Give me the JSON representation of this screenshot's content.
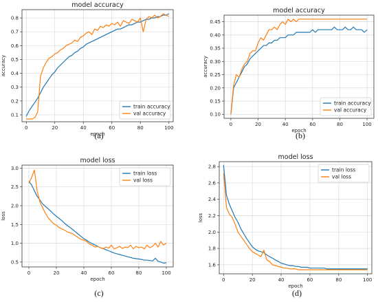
{
  "chart_data": [
    {
      "type": "line",
      "caption": "(a)",
      "title": "model accuracy",
      "xlabel": "epoch",
      "ylabel": "accuracy",
      "xlim": [
        -3,
        103
      ],
      "ylim": [
        0.05,
        0.86
      ],
      "xticks": [
        0,
        20,
        40,
        60,
        80,
        100
      ],
      "yticks": [
        0.1,
        0.2,
        0.3,
        0.4,
        0.5,
        0.6,
        0.7,
        0.8
      ],
      "ytick_labels": [
        "0.1",
        "0.2",
        "0.3",
        "0.4",
        "0.5",
        "0.6",
        "0.7",
        "0.8"
      ],
      "grid": true,
      "legend": "lower-right",
      "x": [
        0,
        2,
        4,
        6,
        8,
        10,
        12,
        14,
        16,
        18,
        20,
        22,
        24,
        26,
        28,
        30,
        32,
        34,
        36,
        38,
        40,
        42,
        44,
        46,
        48,
        50,
        52,
        54,
        56,
        58,
        60,
        62,
        64,
        66,
        68,
        70,
        72,
        74,
        76,
        78,
        80,
        82,
        84,
        86,
        88,
        90,
        92,
        94,
        96,
        98,
        100
      ],
      "series": [
        {
          "name": "train accuracy",
          "color": "#1f77b4",
          "values": [
            0.09,
            0.13,
            0.16,
            0.19,
            0.22,
            0.26,
            0.3,
            0.33,
            0.36,
            0.39,
            0.41,
            0.44,
            0.46,
            0.48,
            0.5,
            0.52,
            0.53,
            0.55,
            0.56,
            0.58,
            0.59,
            0.61,
            0.62,
            0.63,
            0.64,
            0.65,
            0.66,
            0.67,
            0.68,
            0.69,
            0.7,
            0.71,
            0.72,
            0.72,
            0.73,
            0.74,
            0.75,
            0.75,
            0.76,
            0.77,
            0.77,
            0.78,
            0.79,
            0.79,
            0.8,
            0.8,
            0.81,
            0.81,
            0.82,
            0.82,
            0.83
          ]
        },
        {
          "name": "val accuracy",
          "color": "#ff7f0e",
          "values": [
            0.07,
            0.07,
            0.07,
            0.08,
            0.12,
            0.38,
            0.44,
            0.48,
            0.51,
            0.52,
            0.54,
            0.55,
            0.57,
            0.58,
            0.6,
            0.61,
            0.62,
            0.64,
            0.63,
            0.66,
            0.67,
            0.69,
            0.7,
            0.68,
            0.72,
            0.71,
            0.74,
            0.73,
            0.75,
            0.74,
            0.76,
            0.75,
            0.77,
            0.74,
            0.78,
            0.77,
            0.76,
            0.79,
            0.78,
            0.77,
            0.8,
            0.7,
            0.79,
            0.81,
            0.8,
            0.82,
            0.8,
            0.81,
            0.83,
            0.82,
            0.81
          ]
        }
      ]
    },
    {
      "type": "line",
      "caption": "(b)",
      "title": "model accuracy",
      "xlabel": "epoch",
      "ylabel": "accuracy",
      "xlim": [
        -5,
        105
      ],
      "ylim": [
        0.085,
        0.475
      ],
      "xticks": [
        0,
        20,
        40,
        60,
        80,
        100
      ],
      "yticks": [
        0.1,
        0.15,
        0.2,
        0.25,
        0.3,
        0.35,
        0.4,
        0.45
      ],
      "ytick_labels": [
        "0.10",
        "0.15",
        "0.20",
        "0.25",
        "0.30",
        "0.35",
        "0.40",
        "0.45"
      ],
      "grid": true,
      "legend": "lower-right",
      "x": [
        0,
        2,
        4,
        6,
        8,
        10,
        12,
        14,
        16,
        18,
        20,
        22,
        24,
        26,
        28,
        30,
        32,
        34,
        36,
        38,
        40,
        42,
        44,
        46,
        48,
        50,
        52,
        54,
        56,
        58,
        60,
        62,
        64,
        66,
        68,
        70,
        72,
        74,
        76,
        78,
        80,
        82,
        84,
        86,
        88,
        90,
        92,
        94,
        96,
        98,
        100
      ],
      "series": [
        {
          "name": "train accuracy",
          "color": "#1f77b4",
          "values": [
            0.1,
            0.2,
            0.22,
            0.24,
            0.26,
            0.28,
            0.29,
            0.31,
            0.32,
            0.33,
            0.34,
            0.35,
            0.36,
            0.36,
            0.37,
            0.37,
            0.38,
            0.38,
            0.39,
            0.39,
            0.39,
            0.4,
            0.4,
            0.4,
            0.41,
            0.41,
            0.41,
            0.41,
            0.41,
            0.41,
            0.42,
            0.41,
            0.42,
            0.42,
            0.42,
            0.42,
            0.42,
            0.42,
            0.43,
            0.42,
            0.42,
            0.42,
            0.43,
            0.42,
            0.42,
            0.43,
            0.42,
            0.42,
            0.42,
            0.41,
            0.42
          ]
        },
        {
          "name": "val accuracy",
          "color": "#ff7f0e",
          "values": [
            0.1,
            0.21,
            0.25,
            0.24,
            0.27,
            0.29,
            0.3,
            0.33,
            0.34,
            0.34,
            0.37,
            0.39,
            0.38,
            0.4,
            0.42,
            0.42,
            0.43,
            0.42,
            0.44,
            0.45,
            0.44,
            0.46,
            0.45,
            0.46,
            0.45,
            0.46,
            0.46,
            0.46,
            0.46,
            0.46,
            0.46,
            0.46,
            0.46,
            0.46,
            0.46,
            0.46,
            0.46,
            0.46,
            0.46,
            0.46,
            0.46,
            0.46,
            0.46,
            0.46,
            0.46,
            0.46,
            0.46,
            0.46,
            0.46,
            0.46,
            0.46
          ]
        }
      ]
    },
    {
      "type": "line",
      "caption": "(c)",
      "title": "model loss",
      "xlabel": "epoch",
      "ylabel": "loss",
      "xlim": [
        -5,
        105
      ],
      "ylim": [
        0.37,
        3.08
      ],
      "xticks": [
        0,
        20,
        40,
        60,
        80,
        100
      ],
      "yticks": [
        0.5,
        1.0,
        1.5,
        2.0,
        2.5,
        3.0
      ],
      "ytick_labels": [
        "0.5",
        "1.0",
        "1.5",
        "2.0",
        "2.5",
        "3.0"
      ],
      "grid": true,
      "legend": "upper-right",
      "x": [
        0,
        2,
        4,
        6,
        8,
        10,
        12,
        14,
        16,
        18,
        20,
        22,
        24,
        26,
        28,
        30,
        32,
        34,
        36,
        38,
        40,
        42,
        44,
        46,
        48,
        50,
        52,
        54,
        56,
        58,
        60,
        62,
        64,
        66,
        68,
        70,
        72,
        74,
        76,
        78,
        80,
        82,
        84,
        86,
        88,
        90,
        92,
        94,
        96,
        98,
        100
      ],
      "series": [
        {
          "name": "train loss",
          "color": "#1f77b4",
          "values": [
            2.65,
            2.55,
            2.4,
            2.25,
            2.15,
            2.05,
            1.98,
            1.92,
            1.85,
            1.78,
            1.72,
            1.66,
            1.6,
            1.53,
            1.47,
            1.42,
            1.36,
            1.3,
            1.24,
            1.18,
            1.12,
            1.08,
            1.03,
            0.99,
            0.96,
            0.92,
            0.88,
            0.86,
            0.83,
            0.8,
            0.77,
            0.74,
            0.72,
            0.7,
            0.68,
            0.66,
            0.64,
            0.62,
            0.6,
            0.59,
            0.58,
            0.57,
            0.55,
            0.55,
            0.54,
            0.53,
            0.6,
            0.52,
            0.5,
            0.47,
            0.48
          ]
        },
        {
          "name": "val loss",
          "color": "#ff7f0e",
          "values": [
            2.6,
            2.75,
            2.95,
            2.4,
            2.1,
            1.95,
            1.8,
            1.68,
            1.6,
            1.52,
            1.48,
            1.42,
            1.38,
            1.35,
            1.3,
            1.28,
            1.25,
            1.2,
            1.15,
            1.1,
            1.08,
            1.05,
            0.98,
            0.95,
            0.9,
            0.92,
            0.88,
            0.85,
            0.9,
            0.87,
            0.95,
            0.85,
            0.88,
            0.92,
            0.86,
            0.9,
            0.88,
            0.95,
            0.85,
            0.92,
            0.88,
            0.9,
            0.85,
            0.95,
            0.88,
            0.92,
            1.0,
            0.9,
            1.05,
            0.95,
            1.0
          ]
        }
      ]
    },
    {
      "type": "line",
      "caption": "(d)",
      "title": "model loss",
      "xlabel": "epoch",
      "ylabel": "loss",
      "xlim": [
        -3,
        103
      ],
      "ylim": [
        1.49,
        2.86
      ],
      "xticks": [
        0,
        20,
        40,
        60,
        80,
        100
      ],
      "yticks": [
        1.6,
        1.8,
        2.0,
        2.2,
        2.4,
        2.6,
        2.8
      ],
      "ytick_labels": [
        "1.6",
        "1.8",
        "2.0",
        "2.2",
        "2.4",
        "2.6",
        "2.8"
      ],
      "grid": true,
      "legend": "upper-right",
      "x": [
        0,
        2,
        4,
        6,
        8,
        10,
        12,
        14,
        16,
        18,
        20,
        22,
        24,
        26,
        28,
        30,
        32,
        34,
        36,
        38,
        40,
        42,
        44,
        46,
        48,
        50,
        52,
        54,
        56,
        58,
        60,
        62,
        64,
        66,
        68,
        70,
        72,
        74,
        76,
        78,
        80,
        82,
        84,
        86,
        88,
        90,
        92,
        94,
        96,
        98,
        100
      ],
      "series": [
        {
          "name": "train loss",
          "color": "#1f77b4",
          "values": [
            2.82,
            2.45,
            2.34,
            2.26,
            2.18,
            2.12,
            2.04,
            1.98,
            1.92,
            1.87,
            1.82,
            1.79,
            1.77,
            1.76,
            1.75,
            1.72,
            1.7,
            1.68,
            1.66,
            1.64,
            1.62,
            1.61,
            1.6,
            1.59,
            1.59,
            1.58,
            1.58,
            1.57,
            1.57,
            1.57,
            1.56,
            1.56,
            1.56,
            1.56,
            1.56,
            1.56,
            1.55,
            1.55,
            1.55,
            1.55,
            1.55,
            1.55,
            1.55,
            1.55,
            1.55,
            1.55,
            1.55,
            1.55,
            1.55,
            1.55,
            1.55
          ]
        },
        {
          "name": "val loss",
          "color": "#ff7f0e",
          "values": [
            2.72,
            2.3,
            2.22,
            2.18,
            2.1,
            2.0,
            1.95,
            1.9,
            1.85,
            1.8,
            1.76,
            1.74,
            1.72,
            1.7,
            1.78,
            1.66,
            1.64,
            1.6,
            1.59,
            1.58,
            1.57,
            1.56,
            1.56,
            1.55,
            1.55,
            1.55,
            1.54,
            1.54,
            1.54,
            1.54,
            1.54,
            1.54,
            1.54,
            1.54,
            1.54,
            1.54,
            1.54,
            1.54,
            1.54,
            1.54,
            1.54,
            1.54,
            1.54,
            1.54,
            1.54,
            1.54,
            1.54,
            1.54,
            1.54,
            1.54,
            1.54
          ]
        }
      ]
    }
  ]
}
